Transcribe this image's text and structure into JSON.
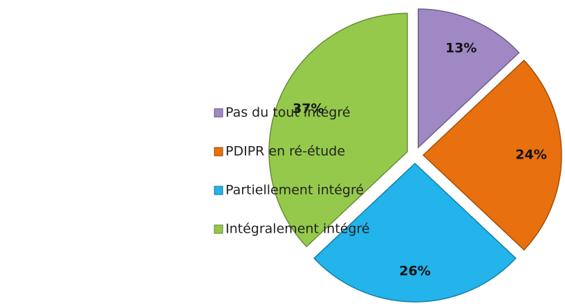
{
  "chart_data": {
    "type": "pie",
    "categories": [
      "Pas du tout intégré",
      "PDIPR en ré-étude",
      "Partiellement intégré",
      "Intégralement intégré"
    ],
    "values": [
      13,
      24,
      26,
      37
    ],
    "value_labels": [
      "13%",
      "24%",
      "26%",
      "37%"
    ],
    "colors": [
      "#9f88c4",
      "#e8700f",
      "#22b4ea",
      "#95c94c"
    ],
    "legend": "left"
  }
}
